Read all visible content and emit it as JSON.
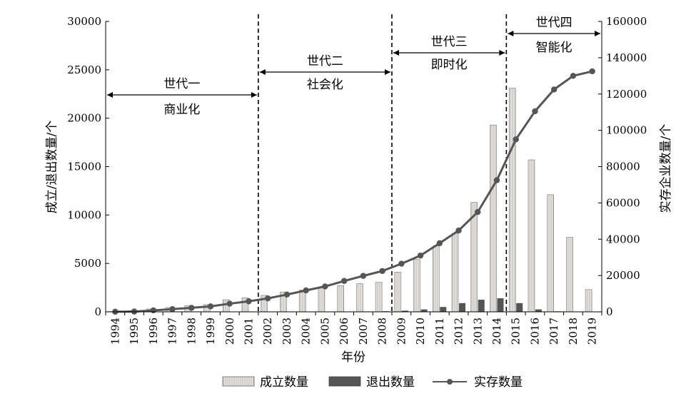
{
  "chart_data": {
    "type": "bar",
    "categories": [
      "1994",
      "1995",
      "1996",
      "1997",
      "1998",
      "1999",
      "2000",
      "2001",
      "2002",
      "2003",
      "2004",
      "2005",
      "2006",
      "2007",
      "2008",
      "2009",
      "2010",
      "2011",
      "2012",
      "2013",
      "2014",
      "2015",
      "2016",
      "2017",
      "2018",
      "2019"
    ],
    "series": [
      {
        "name": "成立数量",
        "type": "bar",
        "axis": "left",
        "color": "#d9d6d2",
        "values": [
          30,
          120,
          300,
          450,
          650,
          750,
          1250,
          1450,
          1700,
          2050,
          2250,
          2500,
          2700,
          2900,
          3050,
          4100,
          5400,
          6800,
          8100,
          11300,
          19300,
          23100,
          15700,
          12100,
          7700,
          2300
        ]
      },
      {
        "name": "退出数量",
        "type": "bar",
        "axis": "left",
        "color": "#555555",
        "values": [
          0,
          0,
          0,
          0,
          0,
          0,
          0,
          0,
          0,
          0,
          10,
          20,
          30,
          40,
          60,
          120,
          250,
          500,
          900,
          1250,
          1400,
          900,
          250,
          50,
          20,
          10
        ]
      },
      {
        "name": "实存数量",
        "type": "line",
        "axis": "right",
        "color": "#555555",
        "values": [
          50,
          150,
          800,
          1500,
          2200,
          3000,
          4500,
          5800,
          7400,
          9500,
          11800,
          14000,
          17000,
          19800,
          22500,
          26500,
          31000,
          37800,
          44800,
          55000,
          72500,
          95000,
          110500,
          122500,
          130000,
          132500
        ]
      }
    ],
    "xlabel": "年份",
    "ylabel_left": "成立/退出数量/个",
    "ylabel_right": "实存企业数量/个",
    "y_left": {
      "range": [
        0,
        30000
      ],
      "ticks": [
        0,
        5000,
        10000,
        15000,
        20000,
        25000,
        30000
      ]
    },
    "y_right": {
      "range": [
        0,
        160000
      ],
      "ticks": [
        0,
        20000,
        40000,
        60000,
        80000,
        100000,
        120000,
        140000,
        160000
      ]
    },
    "grid": false,
    "legend_position": "bottom",
    "eras": [
      {
        "name": "世代一",
        "label": "商业化",
        "from": "1994",
        "to": "2001"
      },
      {
        "name": "世代二",
        "label": "社会化",
        "from": "2002",
        "to": "2008"
      },
      {
        "name": "世代三",
        "label": "即时化",
        "from": "2009",
        "to": "2014"
      },
      {
        "name": "世代四",
        "label": "智能化",
        "from": "2015",
        "to": "2019"
      }
    ]
  }
}
